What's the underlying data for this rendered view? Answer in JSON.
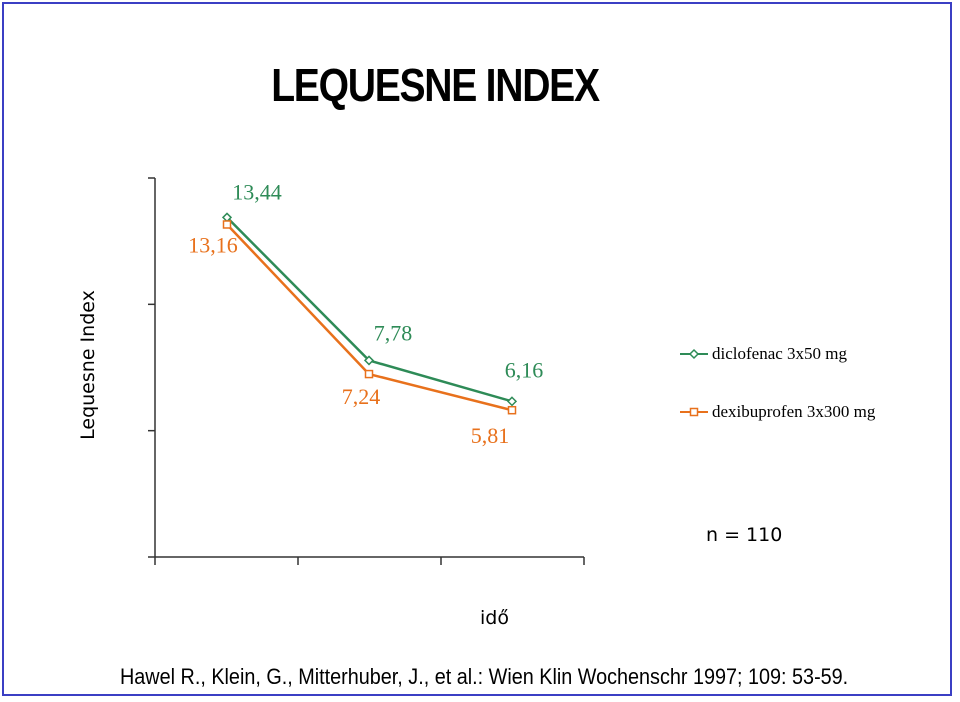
{
  "page": {
    "title": "LEQUESNE INDEX",
    "note": "n = 110",
    "citation": "Hawel R., Klein, G., Mitterhuber, J., et al.: Wien Klin Wochenschr 1997; 109: 53-59."
  },
  "chart_data": {
    "type": "line",
    "title": "LEQUESNE INDEX",
    "xlabel": "idő",
    "ylabel": "Lequesne Index",
    "categories": [
      "",
      "",
      ""
    ],
    "ylim": [
      0,
      15
    ],
    "grid": false,
    "legend_position": "right",
    "series": [
      {
        "name": "diclofenac 3x50 mg",
        "values": [
          13.44,
          7.78,
          6.16
        ],
        "labels": [
          "13,44",
          "7,78",
          "6,16"
        ],
        "color": "#2e8b57",
        "marker": "diamond"
      },
      {
        "name": "dexibuprofen 3x300 mg",
        "values": [
          13.16,
          7.24,
          5.81
        ],
        "labels": [
          "13,16",
          "7,24",
          "5,81"
        ],
        "color": "#e8711c",
        "marker": "square"
      }
    ]
  }
}
